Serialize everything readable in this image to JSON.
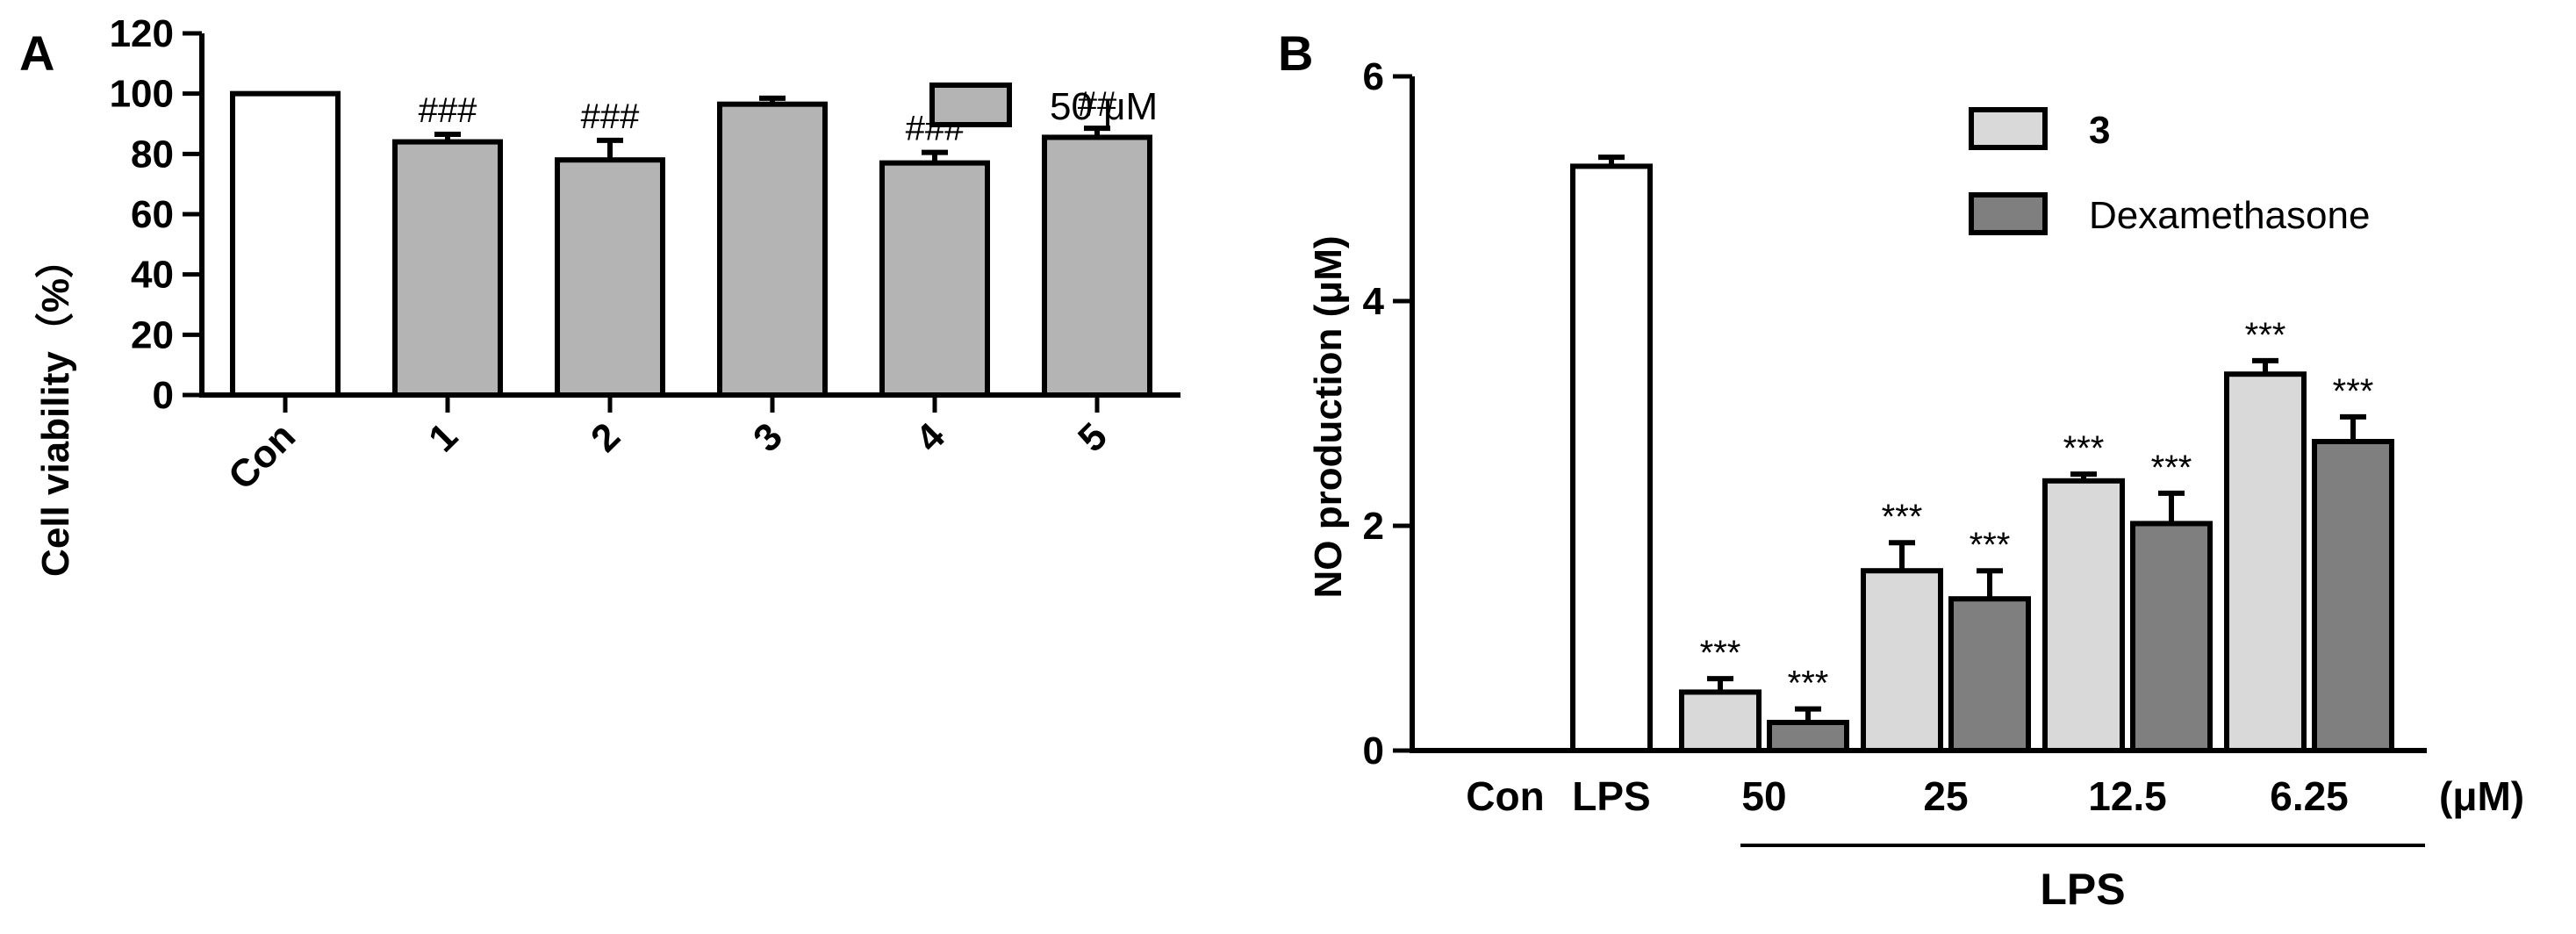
{
  "chart_data": [
    {
      "panel_label": "A",
      "type": "bar",
      "ylabel": "Cell viability（%）",
      "ylim": [
        0,
        120
      ],
      "yticks": [
        0,
        20,
        40,
        60,
        80,
        100,
        120
      ],
      "legend": {
        "placement": "top-right",
        "entries": [
          {
            "label": "50 μM",
            "color": "#b4b4b4"
          }
        ]
      },
      "categories": [
        "Con",
        "1",
        "2",
        "3",
        "4",
        "5"
      ],
      "values": [
        100,
        84,
        78,
        96.5,
        77,
        85.5
      ],
      "errors": [
        0,
        2.5,
        6.5,
        2,
        3.5,
        3
      ],
      "annotations": [
        "",
        "###",
        "###",
        "",
        "###",
        "##"
      ],
      "bar_colors": [
        "#ffffff",
        "#b4b4b4",
        "#b4b4b4",
        "#b4b4b4",
        "#b4b4b4",
        "#b4b4b4"
      ]
    },
    {
      "panel_label": "B",
      "type": "bar",
      "ylabel": "NO production (μM)",
      "ylim": [
        0,
        6
      ],
      "yticks": [
        0,
        2,
        4,
        6
      ],
      "legend": {
        "placement": "top-right",
        "entries": [
          {
            "label": "3",
            "color": "#d9d9d9"
          },
          {
            "label": "Dexamethasone",
            "color": "#7f7f7f"
          }
        ]
      },
      "controls": [
        {
          "label": "Con",
          "value": 0,
          "error": 0
        },
        {
          "label": "LPS",
          "value": 5.2,
          "error": 0.08
        }
      ],
      "categories": [
        "50",
        "25",
        "12.5",
        "6.25"
      ],
      "unit_label": "(μM)",
      "group_label": "LPS",
      "series": [
        {
          "name": "3",
          "values": [
            0.52,
            1.6,
            2.4,
            3.35
          ],
          "errors": [
            0.12,
            0.25,
            0.06,
            0.12
          ],
          "annotations": [
            "***",
            "***",
            "***",
            "***"
          ],
          "color": "#d9d9d9"
        },
        {
          "name": "Dexamethasone",
          "values": [
            0.25,
            1.35,
            2.02,
            2.75
          ],
          "errors": [
            0.12,
            0.25,
            0.27,
            0.22
          ],
          "annotations": [
            "***",
            "***",
            "***",
            "***"
          ],
          "color": "#7f7f7f"
        }
      ]
    }
  ]
}
